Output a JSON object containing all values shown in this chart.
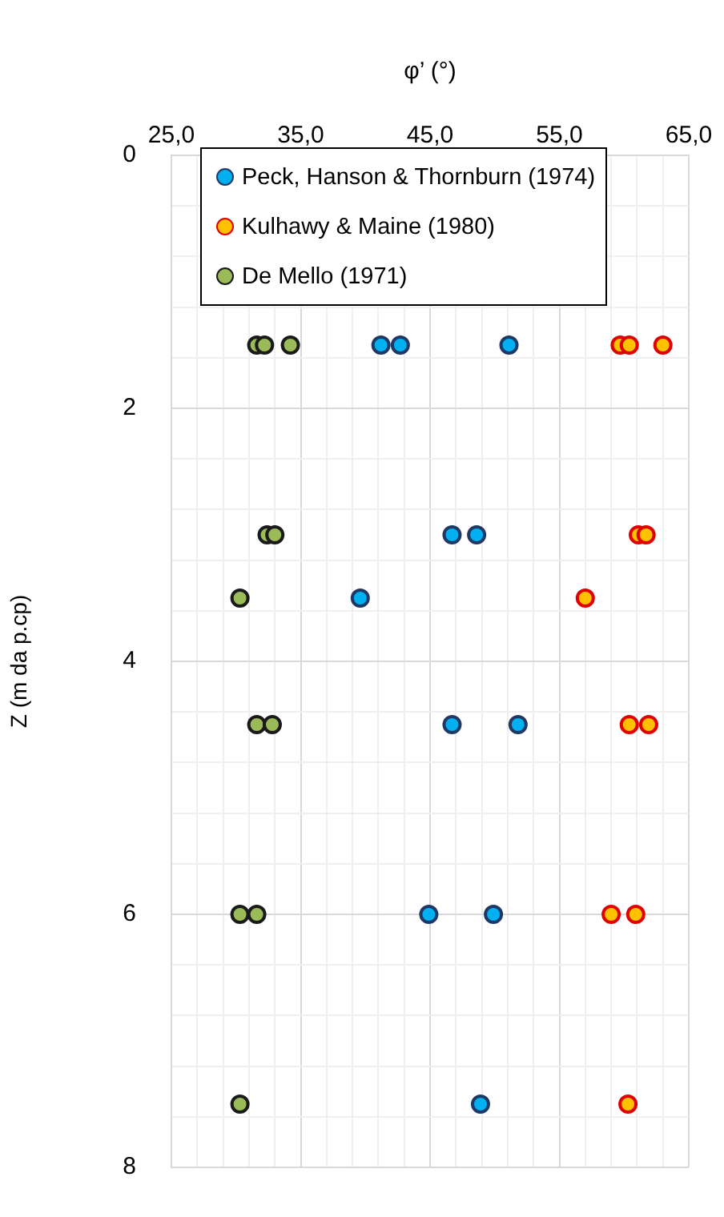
{
  "chart_data": {
    "type": "scatter",
    "xlabel": "φ’ (°)",
    "ylabel": "Z (m da p.cp)",
    "xlim": [
      25,
      65
    ],
    "ylim": [
      8,
      0
    ],
    "xticks": [
      {
        "value": 25,
        "label": "25,0"
      },
      {
        "value": 27,
        "label": null
      },
      {
        "value": 29,
        "label": null
      },
      {
        "value": 31,
        "label": null
      },
      {
        "value": 33,
        "label": null
      },
      {
        "value": 35,
        "label": "35,0"
      },
      {
        "value": 37,
        "label": null
      },
      {
        "value": 39,
        "label": null
      },
      {
        "value": 41,
        "label": null
      },
      {
        "value": 43,
        "label": null
      },
      {
        "value": 45,
        "label": "45,0"
      },
      {
        "value": 47,
        "label": null
      },
      {
        "value": 49,
        "label": null
      },
      {
        "value": 51,
        "label": null
      },
      {
        "value": 53,
        "label": null
      },
      {
        "value": 55,
        "label": "55,0"
      },
      {
        "value": 57,
        "label": null
      },
      {
        "value": 59,
        "label": null
      },
      {
        "value": 61,
        "label": null
      },
      {
        "value": 63,
        "label": null
      },
      {
        "value": 65,
        "label": "65,0"
      }
    ],
    "yticks": [
      0,
      {
        "value": 0.4,
        "label": null
      },
      {
        "value": 0.8,
        "label": null
      },
      {
        "value": 1.2,
        "label": null
      },
      {
        "value": 1.6,
        "label": null
      },
      2,
      {
        "value": 2.4,
        "label": null
      },
      {
        "value": 2.8,
        "label": null
      },
      {
        "value": 3.2,
        "label": null
      },
      {
        "value": 3.6,
        "label": null
      },
      4,
      {
        "value": 4.4,
        "label": null
      },
      {
        "value": 4.8,
        "label": null
      },
      {
        "value": 5.2,
        "label": null
      },
      {
        "value": 5.6,
        "label": null
      },
      6,
      {
        "value": 6.4,
        "label": null
      },
      {
        "value": 6.8,
        "label": null
      },
      {
        "value": 7.2,
        "label": null
      },
      {
        "value": 7.6,
        "label": null
      },
      8
    ],
    "grid": true,
    "legend": "top",
    "marker": "circle",
    "series": [
      {
        "name": "Peck, Hanson & Thornburn (1974)",
        "color": "#00b0f0",
        "x": [
          41.2,
          42.7,
          51.1,
          46.7,
          48.6,
          39.6,
          46.7,
          51.8,
          44.9,
          49.9,
          48.9
        ],
        "values": [
          1.5,
          1.5,
          1.5,
          3,
          3,
          3.5,
          4.5,
          4.5,
          6,
          6,
          7.5
        ]
      },
      {
        "name": "Kulhawy & Maine (1980)",
        "color": "#ffc000",
        "x": [
          59.7,
          60.4,
          63.0,
          61.1,
          61.7,
          57.0,
          60.4,
          61.9,
          59.0,
          60.9,
          60.3
        ],
        "values": [
          1.5,
          1.5,
          1.5,
          3,
          3,
          3.5,
          4.5,
          4.5,
          6,
          6,
          7.5
        ]
      },
      {
        "name": "De Mello (1971)",
        "color": "#9bbb59",
        "x": [
          31.6,
          32.2,
          34.2,
          32.4,
          33.0,
          30.3,
          31.6,
          32.8,
          30.3,
          31.6,
          30.3
        ],
        "values": [
          1.5,
          1.5,
          1.5,
          3,
          3,
          3.5,
          4.5,
          4.5,
          6,
          6,
          7.5
        ]
      }
    ]
  }
}
